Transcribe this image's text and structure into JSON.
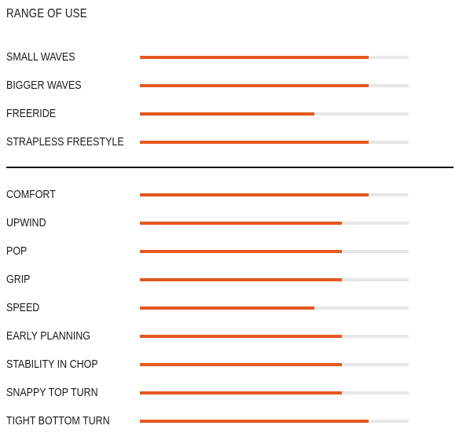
{
  "title": "RANGE OF USE",
  "colors": {
    "fill": "#e4581f",
    "track": "#e7e7e7",
    "divider": "#111111"
  },
  "group1": [
    {
      "label": "SMALL WAVES",
      "level": 0.85
    },
    {
      "label": "BIGGER WAVES",
      "level": 0.85
    },
    {
      "label": "FREERIDE",
      "level": 0.65
    },
    {
      "label": "STRAPLESS FREESTYLE",
      "level": 0.85
    }
  ],
  "group2": [
    {
      "label": "COMFORT",
      "level": 0.85
    },
    {
      "label": "UPWIND",
      "level": 0.75
    },
    {
      "label": "POP",
      "level": 0.75
    },
    {
      "label": "GRIP",
      "level": 0.75
    },
    {
      "label": "SPEED",
      "level": 0.65
    },
    {
      "label": "EARLY PLANNING",
      "level": 0.75
    },
    {
      "label": "STABILITY IN CHOP",
      "level": 0.75
    },
    {
      "label": "SNAPPY TOP TURN",
      "level": 0.75
    },
    {
      "label": "TIGHT BOTTOM TURN",
      "level": 0.85
    }
  ]
}
